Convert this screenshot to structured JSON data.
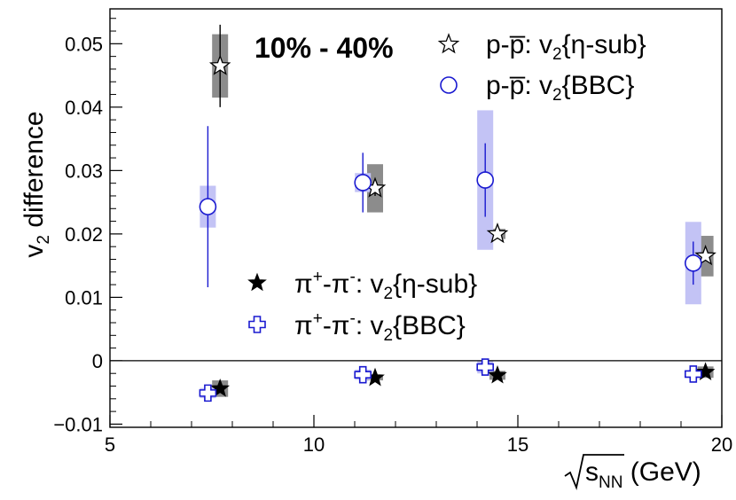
{
  "chart_data": {
    "type": "scatter",
    "title": "",
    "annotation": "10% - 40%",
    "xlabel": {
      "sqrt_sign": "√",
      "var": "s",
      "sub": "NN",
      "unit": " (GeV)"
    },
    "ylabel": {
      "main": "v",
      "sub": "2",
      "rest": " difference"
    },
    "xlim": [
      5,
      20
    ],
    "ylim": [
      -0.0105,
      0.0555
    ],
    "xticks": [
      5,
      10,
      15,
      20
    ],
    "xtick_labels": [
      "5",
      "10",
      "15",
      "20"
    ],
    "yticks": [
      -0.01,
      0,
      0.01,
      0.02,
      0.03,
      0.04,
      0.05
    ],
    "ytick_labels": [
      "−0.01",
      "0",
      "0.01",
      "0.02",
      "0.03",
      "0.04",
      "0.05"
    ],
    "zero_line": true,
    "series": [
      {
        "name": "p-pbar v2{eta-sub}",
        "legend": {
          "main": "p-p̅: v",
          "sub": "2",
          "tail": "{η-sub}"
        },
        "marker": "open-star",
        "color": "#000000",
        "syscolor": "#8c8c8c",
        "points": [
          {
            "x": 7.7,
            "y": 0.0465,
            "err": 0.0065,
            "sys": 0.005
          },
          {
            "x": 11.5,
            "y": 0.0272,
            "err": 0.0012,
            "sys": 0.0038
          },
          {
            "x": 14.5,
            "y": 0.02,
            "err": 0.0004,
            "sys": 0.0008
          },
          {
            "x": 19.6,
            "y": 0.0165,
            "err": 0.0004,
            "sys": 0.0032
          }
        ]
      },
      {
        "name": "p-pbar v2{BBC}",
        "legend": {
          "main": "p-p̅: v",
          "sub": "2",
          "tail": "{BBC}"
        },
        "marker": "open-circle",
        "color": "#1a1ad0",
        "syscolor": "#c3c3f5",
        "points": [
          {
            "x": 7.4,
            "y": 0.0243,
            "err": 0.0127,
            "sys": 0.0033
          },
          {
            "x": 11.2,
            "y": 0.0281,
            "err": 0.0047,
            "sys": 0.0015
          },
          {
            "x": 14.2,
            "y": 0.0285,
            "err": 0.0058,
            "sys": 0.011
          },
          {
            "x": 19.3,
            "y": 0.0154,
            "err": 0.0034,
            "sys": 0.0065
          }
        ]
      },
      {
        "name": "pi+ - pi- v2{eta-sub}",
        "legend": {
          "main": "π",
          "sup1": "+",
          "mid": "-π",
          "sup2": "-",
          "colon": ": v",
          "sub": "2",
          "tail": "{η-sub}"
        },
        "marker": "filled-star",
        "color": "#000000",
        "syscolor": "#8c8c8c",
        "points": [
          {
            "x": 7.7,
            "y": -0.0044,
            "err": 0.0004,
            "sys": 0.0013
          },
          {
            "x": 11.5,
            "y": -0.0027,
            "err": 0.0002,
            "sys": 0.0004
          },
          {
            "x": 14.5,
            "y": -0.0023,
            "err": 0.0002,
            "sys": 0.0007
          },
          {
            "x": 19.6,
            "y": -0.0018,
            "err": 0.0002,
            "sys": 0.0009
          }
        ]
      },
      {
        "name": "pi+ - pi- v2{BBC}",
        "legend": {
          "main": "π",
          "sup1": "+",
          "mid": "-π",
          "sup2": "-",
          "colon": ": v",
          "sub": "2",
          "tail": "{BBC}"
        },
        "marker": "open-cross",
        "color": "#1a1ad0",
        "syscolor": "#c3c3f5",
        "points": [
          {
            "x": 7.4,
            "y": -0.0051,
            "err": 0.0004,
            "sys": 0.0008
          },
          {
            "x": 11.2,
            "y": -0.0022,
            "err": 0.0002,
            "sys": 0.0008
          },
          {
            "x": 14.2,
            "y": -0.001,
            "err": 0.0002,
            "sys": 0.001
          },
          {
            "x": 19.3,
            "y": -0.0021,
            "err": 0.0002,
            "sys": 0.0006
          }
        ]
      }
    ]
  }
}
